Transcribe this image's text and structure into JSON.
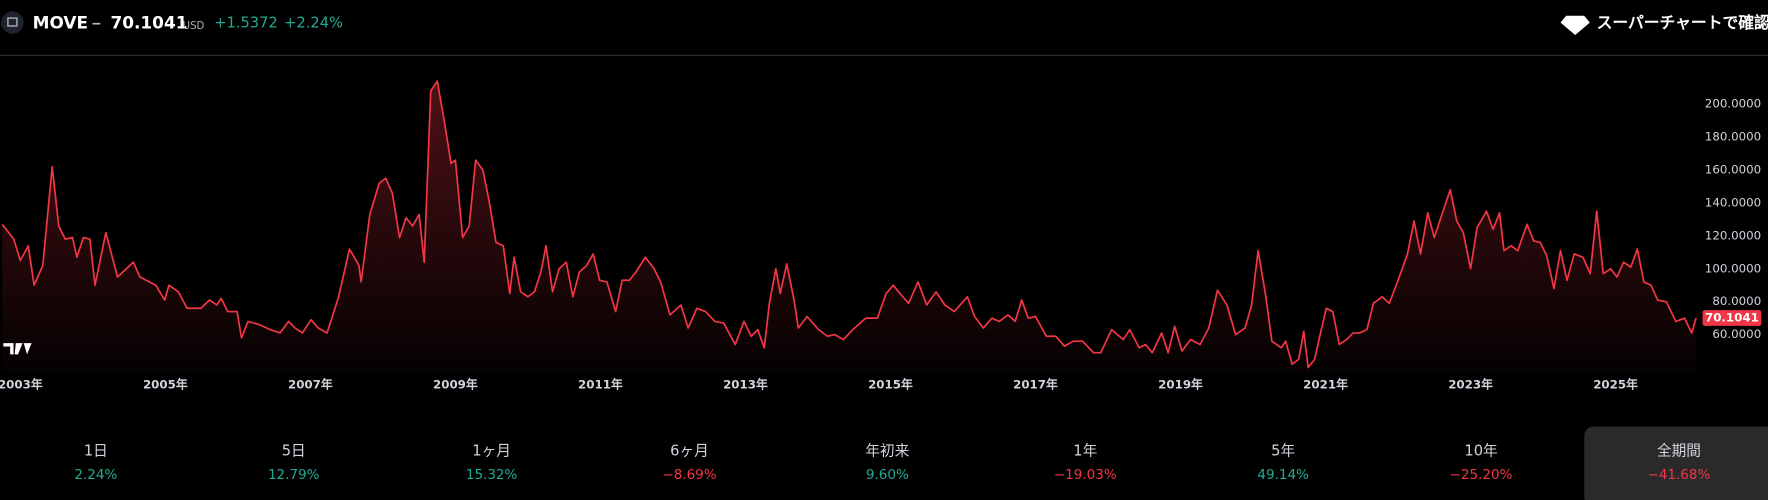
{
  "header": {
    "symbol": "MOVE",
    "price": "70.1041",
    "currency": "USD",
    "change": "+1.5372",
    "change_percent": "+2.24%",
    "supercharts": "スーパーチャートで確認"
  },
  "chart_data": {
    "type": "line",
    "color": "#f23645",
    "x": [
      2002.75,
      2002.91,
      2003.0,
      2003.11,
      2003.19,
      2003.31,
      2003.44,
      2003.53,
      2003.62,
      2003.72,
      2003.78,
      2003.87,
      2003.96,
      2004.03,
      2004.18,
      2004.34,
      2004.56,
      2004.65,
      2004.87,
      2004.99,
      2005.05,
      2005.18,
      2005.3,
      2005.49,
      2005.61,
      2005.71,
      2005.77,
      2005.86,
      2005.99,
      2006.05,
      2006.14,
      2006.3,
      2006.45,
      2006.58,
      2006.7,
      2006.79,
      2006.89,
      2007.01,
      2007.11,
      2007.23,
      2007.39,
      2007.54,
      2007.67,
      2007.7,
      2007.82,
      2007.95,
      2008.04,
      2008.13,
      2008.23,
      2008.32,
      2008.41,
      2008.5,
      2008.57,
      2008.66,
      2008.75,
      2008.85,
      2008.94,
      2009.0,
      2009.1,
      2009.19,
      2009.28,
      2009.38,
      2009.47,
      2009.56,
      2009.66,
      2009.75,
      2009.81,
      2009.9,
      2010.0,
      2010.09,
      2010.18,
      2010.25,
      2010.34,
      2010.43,
      2010.53,
      2010.62,
      2010.71,
      2010.81,
      2010.9,
      2010.99,
      2011.09,
      2011.21,
      2011.3,
      2011.4,
      2011.49,
      2011.62,
      2011.74,
      2011.83,
      2011.96,
      2012.11,
      2012.21,
      2012.33,
      2012.45,
      2012.58,
      2012.7,
      2012.86,
      2012.98,
      2013.08,
      2013.17,
      2013.26,
      2013.33,
      2013.42,
      2013.48,
      2013.57,
      2013.67,
      2013.73,
      2013.85,
      2014.01,
      2014.13,
      2014.23,
      2014.35,
      2014.48,
      2014.66,
      2014.82,
      2014.94,
      2015.04,
      2015.13,
      2015.25,
      2015.38,
      2015.5,
      2015.63,
      2015.75,
      2015.88,
      2016.06,
      2016.16,
      2016.28,
      2016.4,
      2016.5,
      2016.62,
      2016.72,
      2016.81,
      2016.9,
      2017.0,
      2017.15,
      2017.28,
      2017.4,
      2017.52,
      2017.65,
      2017.8,
      2017.9,
      2018.05,
      2018.21,
      2018.3,
      2018.43,
      2018.52,
      2018.61,
      2018.74,
      2018.83,
      2018.92,
      2019.02,
      2019.14,
      2019.27,
      2019.39,
      2019.51,
      2019.64,
      2019.76,
      2019.89,
      2019.98,
      2020.07,
      2020.17,
      2020.26,
      2020.39,
      2020.45,
      2020.54,
      2020.63,
      2020.7,
      2020.76,
      2020.85,
      2020.91,
      2021.01,
      2021.1,
      2021.19,
      2021.29,
      2021.38,
      2021.47,
      2021.57,
      2021.66,
      2021.78,
      2021.88,
      2022.0,
      2022.13,
      2022.22,
      2022.31,
      2022.41,
      2022.5,
      2022.59,
      2022.72,
      2022.81,
      2022.9,
      2023.0,
      2023.09,
      2023.22,
      2023.31,
      2023.4,
      2023.46,
      2023.56,
      2023.65,
      2023.78,
      2023.87,
      2023.96,
      2024.05,
      2024.15,
      2024.24,
      2024.33,
      2024.43,
      2024.55,
      2024.65,
      2024.74,
      2024.83,
      2024.93,
      2025.02,
      2025.11,
      2025.21,
      2025.3,
      2025.39,
      2025.49,
      2025.58,
      2025.7,
      2025.83,
      2025.95,
      2026.05,
      2026.11
    ],
    "values": [
      127,
      118,
      105,
      114,
      90,
      102,
      162,
      126,
      118,
      119,
      107,
      119,
      118,
      90,
      122,
      95,
      104,
      95,
      90,
      81,
      90,
      86,
      76,
      76,
      81,
      78,
      82,
      74,
      74,
      58,
      68,
      66,
      63,
      61,
      68,
      64,
      61,
      69,
      64,
      61,
      83,
      112,
      102,
      92,
      133,
      152,
      155,
      146,
      119,
      131,
      126,
      133,
      104,
      208,
      214,
      189,
      164,
      166,
      119,
      126,
      166,
      160,
      140,
      116,
      114,
      85,
      107,
      86,
      83,
      86,
      98,
      114,
      86,
      100,
      104,
      83,
      98,
      102,
      109,
      93,
      92,
      74,
      93,
      93,
      98,
      107,
      100,
      92,
      72,
      78,
      64,
      76,
      74,
      68,
      67,
      54,
      68,
      59,
      63,
      52,
      79,
      100,
      85,
      103,
      81,
      64,
      71,
      63,
      59,
      60,
      57,
      63,
      70,
      70,
      85,
      90,
      85,
      79,
      92,
      78,
      86,
      78,
      74,
      83,
      71,
      64,
      70,
      68,
      72,
      68,
      81,
      70,
      71,
      59,
      59,
      53,
      56,
      56,
      49,
      49,
      63,
      57,
      63,
      52,
      54,
      49,
      61,
      49,
      65,
      50,
      57,
      54,
      64,
      87,
      78,
      60,
      64,
      78,
      111,
      85,
      56,
      52,
      56,
      42,
      45,
      62,
      40,
      45,
      57,
      76,
      74,
      54,
      57,
      61,
      61,
      63,
      79,
      83,
      79,
      93,
      109,
      129,
      109,
      134,
      119,
      131,
      148,
      129,
      122,
      100,
      125,
      135,
      124,
      134,
      111,
      114,
      111,
      127,
      117,
      116,
      108,
      88,
      111,
      93,
      109,
      107,
      97,
      135,
      97,
      100,
      95,
      104,
      101,
      112,
      92,
      90,
      81,
      80,
      68,
      70,
      61,
      70.1041
    ],
    "xlim": [
      2002.72,
      2026.2
    ],
    "xticks": [
      {
        "value": 2003,
        "label": "2003年"
      },
      {
        "value": 2005,
        "label": "2005年"
      },
      {
        "value": 2007,
        "label": "2007年"
      },
      {
        "value": 2009,
        "label": "2009年"
      },
      {
        "value": 2011,
        "label": "2011年"
      },
      {
        "value": 2013,
        "label": "2013年"
      },
      {
        "value": 2015,
        "label": "2015年"
      },
      {
        "value": 2017,
        "label": "2017年"
      },
      {
        "value": 2019,
        "label": "2019年"
      },
      {
        "value": 2021,
        "label": "2021年"
      },
      {
        "value": 2023,
        "label": "2023年"
      },
      {
        "value": 2025,
        "label": "2025年"
      }
    ],
    "ylim": [
      37,
      229
    ],
    "yticks": [
      {
        "value": 60,
        "label": "60.0000"
      },
      {
        "value": 80,
        "label": "80.0000"
      },
      {
        "value": 100,
        "label": "100.0000"
      },
      {
        "value": 120,
        "label": "120.0000"
      },
      {
        "value": 140,
        "label": "140.0000"
      },
      {
        "value": 160,
        "label": "160.0000"
      },
      {
        "value": 180,
        "label": "180.0000"
      },
      {
        "value": 200,
        "label": "200.0000"
      }
    ]
  },
  "performance": [
    {
      "label": "1日",
      "value": "2.24%",
      "color": "#22ab94"
    },
    {
      "label": "5日",
      "value": "12.79%",
      "color": "#22ab94"
    },
    {
      "label": "1ヶ月",
      "value": "15.32%",
      "color": "#22ab94"
    },
    {
      "label": "6ヶ月",
      "value": "−8.69%",
      "color": "#f23645"
    },
    {
      "label": "年初来",
      "value": "9.60%",
      "color": "#22ab94"
    },
    {
      "label": "1年",
      "value": "−19.03%",
      "color": "#f23645"
    },
    {
      "label": "5年",
      "value": "49.14%",
      "color": "#22ab94"
    },
    {
      "label": "10年",
      "value": "−25.20%",
      "color": "#f23645"
    },
    {
      "label": "全期間",
      "value": "−41.68%",
      "color": "#f23645"
    }
  ]
}
